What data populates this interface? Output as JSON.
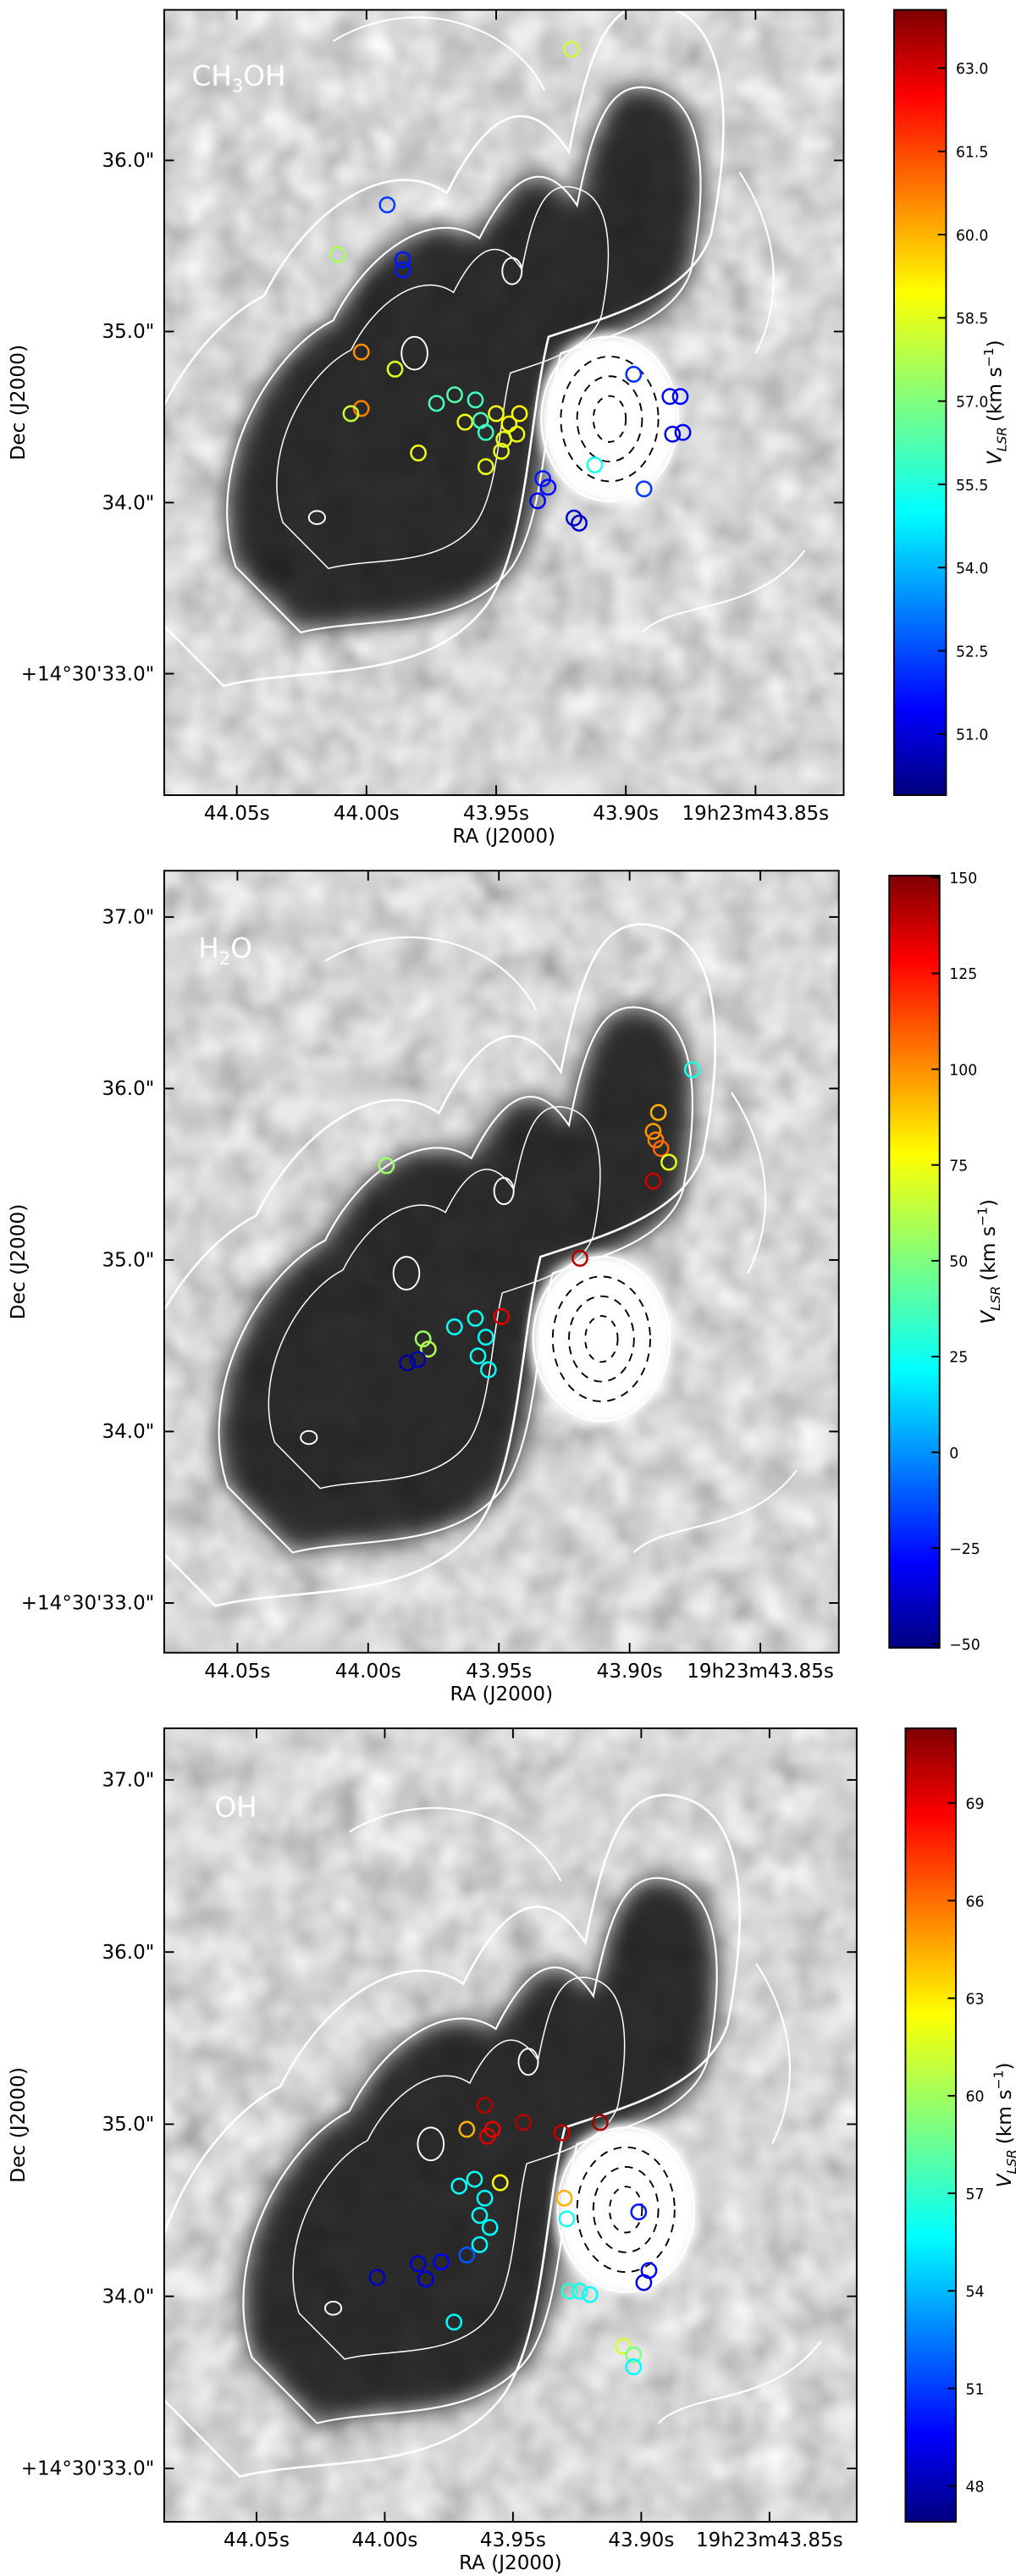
{
  "chart_data": [
    {
      "type": "scatter",
      "label": [
        "CH",
        "3",
        "OH"
      ],
      "xlabel": "RA (J2000)",
      "ylabel": "Dec (J2000)",
      "colormap": "jet",
      "x": [
        43.921,
        43.992,
        44.011,
        43.986,
        43.986,
        44.002,
        43.989,
        44.002,
        44.006,
        43.98,
        43.962,
        43.954,
        43.95,
        43.945,
        43.942,
        43.947,
        43.941,
        43.948,
        43.973,
        43.966,
        43.958,
        43.956,
        43.954,
        43.897,
        43.883,
        43.879,
        43.882,
        43.878,
        43.893,
        43.912,
        43.932,
        43.93,
        43.934,
        43.92,
        43.918
      ],
      "y": [
        36.65,
        35.74,
        35.45,
        35.42,
        35.36,
        34.88,
        34.78,
        34.55,
        34.52,
        34.29,
        34.47,
        34.21,
        34.52,
        34.46,
        34.4,
        34.37,
        34.52,
        34.3,
        34.58,
        34.63,
        34.6,
        34.48,
        34.41,
        34.75,
        34.62,
        34.62,
        34.4,
        34.41,
        34.08,
        34.22,
        34.14,
        34.09,
        34.01,
        33.91,
        33.88
      ],
      "values": [
        58.0,
        52.5,
        57.5,
        52.0,
        52.0,
        60.3,
        58.3,
        60.5,
        58.0,
        58.5,
        58.5,
        58.5,
        58.6,
        58.7,
        58.5,
        58.4,
        58.8,
        58.5,
        56.2,
        56.3,
        56.0,
        56.2,
        56.0,
        52.3,
        51.8,
        51.8,
        51.5,
        51.5,
        52.5,
        55.5,
        52.0,
        51.8,
        51.5,
        51.0,
        51.0
      ],
      "xlim": [
        44.078,
        43.816
      ],
      "ylim": [
        32.29,
        36.88
      ],
      "xticks": [
        {
          "value": 44.05,
          "label": "44.05s"
        },
        {
          "value": 44.0,
          "label": "44.00s"
        },
        {
          "value": 43.95,
          "label": "43.95s"
        },
        {
          "value": 43.9,
          "label": "43.90s"
        },
        {
          "value": 43.85,
          "label": "19h23m43.85s"
        }
      ],
      "yticks": [
        {
          "value": 33,
          "label": "+14°30'33.0\""
        },
        {
          "value": 34,
          "label": "34.0\""
        },
        {
          "value": 35,
          "label": "35.0\""
        },
        {
          "value": 36,
          "label": "36.0\""
        }
      ],
      "colorbar": {
        "clim": [
          49.9,
          64.05
        ],
        "label": [
          "V",
          "LSR",
          "(km s",
          "−1",
          ")"
        ],
        "ticks": [
          {
            "value": 51,
            "label": "51.0"
          },
          {
            "value": 52.5,
            "label": "52.5"
          },
          {
            "value": 54,
            "label": "54.0"
          },
          {
            "value": 55.5,
            "label": "55.5"
          },
          {
            "value": 57,
            "label": "57.0"
          },
          {
            "value": 58.5,
            "label": "58.5"
          },
          {
            "value": 60,
            "label": "60.0"
          },
          {
            "value": 61.5,
            "label": "61.5"
          },
          {
            "value": 63,
            "label": "63.0"
          }
        ]
      }
    },
    {
      "type": "scatter",
      "label": [
        "H",
        "2",
        "O"
      ],
      "xlabel": "RA (J2000)",
      "ylabel": "Dec (J2000)",
      "colormap": "jet",
      "x": [
        43.876,
        43.889,
        43.891,
        43.89,
        43.888,
        43.885,
        43.891,
        43.993,
        43.919,
        43.949,
        43.979,
        43.977,
        43.981,
        43.985,
        43.967,
        43.959,
        43.955,
        43.958,
        43.954
      ],
      "y": [
        36.11,
        35.86,
        35.75,
        35.7,
        35.65,
        35.57,
        35.46,
        35.55,
        35.01,
        34.67,
        34.54,
        34.48,
        34.42,
        34.4,
        34.61,
        34.66,
        34.55,
        34.44,
        34.36
      ],
      "values": [
        30,
        90,
        95,
        100,
        105,
        70,
        135,
        55,
        140,
        130,
        55,
        60,
        -40,
        -45,
        25,
        28,
        25,
        27,
        25
      ],
      "xlim": [
        44.078,
        43.82
      ],
      "ylim": [
        32.71,
        37.27
      ],
      "xticks": [
        {
          "value": 44.05,
          "label": "44.05s"
        },
        {
          "value": 44.0,
          "label": "44.00s"
        },
        {
          "value": 43.95,
          "label": "43.95s"
        },
        {
          "value": 43.9,
          "label": "43.90s"
        },
        {
          "value": 43.85,
          "label": "19h23m43.85s"
        }
      ],
      "yticks": [
        {
          "value": 33,
          "label": "+14°30'33.0\""
        },
        {
          "value": 34,
          "label": "34.0\""
        },
        {
          "value": 35,
          "label": "35.0\""
        },
        {
          "value": 36,
          "label": "36.0\""
        },
        {
          "value": 37,
          "label": "37.0\""
        }
      ],
      "colorbar": {
        "clim": [
          -51,
          150.5
        ],
        "label": [
          "V",
          "LSR",
          "(km s",
          "−1",
          ")"
        ],
        "ticks": [
          {
            "value": -50,
            "label": "−50"
          },
          {
            "value": -25,
            "label": "−25"
          },
          0,
          25,
          50,
          75,
          100,
          125,
          150
        ]
      }
    },
    {
      "type": "scatter",
      "label": [
        "OH"
      ],
      "xlabel": "RA (J2000)",
      "ylabel": "Dec (J2000)",
      "colormap": "jet",
      "x": [
        43.961,
        43.96,
        43.958,
        43.946,
        43.968,
        43.931,
        43.916,
        43.955,
        43.93,
        43.929,
        43.901,
        43.897,
        43.899,
        43.963,
        43.968,
        43.978,
        43.987,
        43.984,
        44.003,
        43.973,
        43.928,
        43.924,
        43.92,
        43.907,
        43.903,
        43.903,
        43.971,
        43.965,
        43.961,
        43.963,
        43.959
      ],
      "y": [
        35.11,
        34.93,
        34.97,
        35.01,
        34.97,
        34.95,
        35.01,
        34.66,
        34.57,
        34.45,
        34.49,
        34.15,
        34.08,
        34.3,
        34.24,
        34.2,
        34.19,
        34.1,
        34.11,
        33.85,
        34.03,
        34.03,
        34.01,
        33.71,
        33.66,
        33.59,
        34.64,
        34.68,
        34.57,
        34.47,
        34.4
      ],
      "values": [
        70.0,
        69.0,
        68.5,
        70.0,
        64.0,
        69.5,
        70.5,
        62.0,
        64.0,
        56.5,
        50.5,
        50.0,
        49.5,
        56.0,
        52.0,
        50.0,
        49.0,
        49.0,
        48.5,
        56.0,
        57.0,
        56.5,
        56.0,
        61.0,
        59.0,
        56.0,
        56.2,
        56.3,
        56.0,
        56.2,
        56.0
      ],
      "xlim": [
        44.086,
        43.816
      ],
      "ylim": [
        32.69,
        37.3
      ],
      "xticks": [
        {
          "value": 44.05,
          "label": "44.05s"
        },
        {
          "value": 44.0,
          "label": "44.00s"
        },
        {
          "value": 43.95,
          "label": "43.95s"
        },
        {
          "value": 43.9,
          "label": "43.90s"
        },
        {
          "value": 43.85,
          "label": "19h23m43.85s"
        }
      ],
      "yticks": [
        {
          "value": 33,
          "label": "+14°30'33.0\""
        },
        {
          "value": 34,
          "label": "34.0\""
        },
        {
          "value": 35,
          "label": "35.0\""
        },
        {
          "value": 36,
          "label": "36.0\""
        },
        {
          "value": 37,
          "label": "37.0\""
        }
      ],
      "colorbar": {
        "clim": [
          46.9,
          71.3
        ],
        "label": [
          "V",
          "LSR",
          "(km s",
          "−1",
          ")"
        ],
        "ticks": [
          48,
          51,
          54,
          57,
          60,
          63,
          66,
          69
        ]
      }
    }
  ]
}
